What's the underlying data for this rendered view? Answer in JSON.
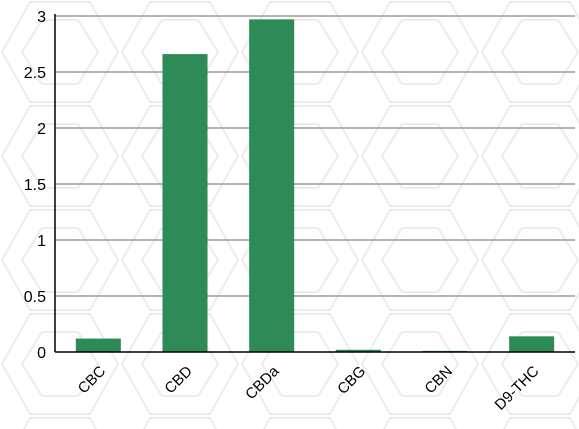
{
  "chart_data": {
    "type": "bar",
    "title": "",
    "xlabel": "",
    "ylabel": "",
    "categories": [
      "CBC",
      "CBD",
      "CBDa",
      "CBG",
      "CBN",
      "D9-THC"
    ],
    "values": [
      0.12,
      2.66,
      2.97,
      0.02,
      0.01,
      0.14
    ],
    "ylim": [
      0,
      3
    ],
    "yticks": [
      {
        "value": 0,
        "label": "0"
      },
      {
        "value": 0.5,
        "label": "0.5"
      },
      {
        "value": 1,
        "label": "1"
      },
      {
        "value": 1.5,
        "label": "1.5"
      },
      {
        "value": 2,
        "label": "2"
      },
      {
        "value": 2.5,
        "label": "2.5"
      },
      {
        "value": 3,
        "label": "3"
      }
    ],
    "grid": true,
    "bar_color": "#2e8b57",
    "grid_color": "#b3b3b3",
    "background_pattern_color": "#ececec"
  }
}
